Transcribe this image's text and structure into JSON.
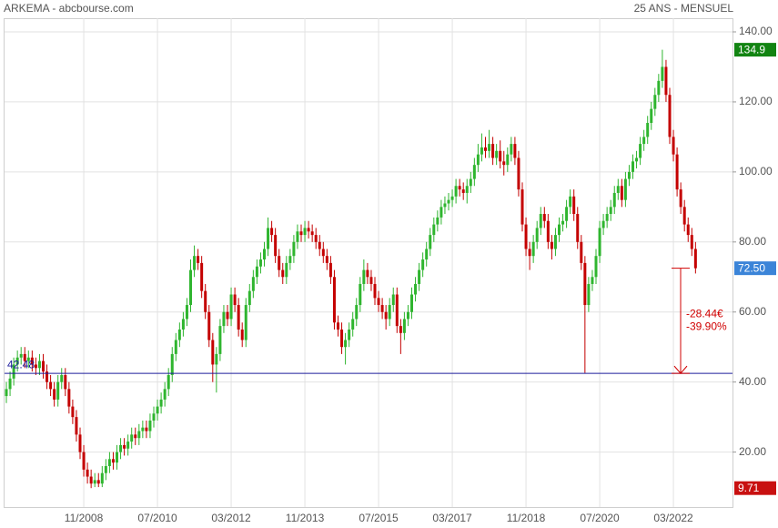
{
  "chart_data": {
    "type": "candlestick",
    "title": "ARKEMA - abcbourse.com",
    "subtitle": "25 ANS - MENSUEL",
    "categories": [
      null,
      null,
      null,
      null,
      null,
      null,
      null,
      null,
      null,
      null,
      null,
      null,
      null,
      null,
      null,
      null,
      null,
      null,
      null,
      null,
      null,
      "11/2008",
      null,
      null,
      null,
      null,
      null,
      null,
      null,
      null,
      null,
      null,
      null,
      null,
      null,
      null,
      null,
      null,
      null,
      null,
      null,
      "07/2010",
      null,
      null,
      null,
      null,
      null,
      null,
      null,
      null,
      null,
      null,
      null,
      null,
      null,
      null,
      null,
      null,
      null,
      null,
      null,
      "03/2012",
      null,
      null,
      null,
      null,
      null,
      null,
      null,
      null,
      null,
      null,
      null,
      null,
      null,
      null,
      null,
      null,
      null,
      null,
      null,
      "11/2013",
      null,
      null,
      null,
      null,
      null,
      null,
      null,
      null,
      null,
      null,
      null,
      null,
      null,
      null,
      null,
      null,
      null,
      null,
      null,
      "07/2015",
      null,
      null,
      null,
      null,
      null,
      null,
      null,
      null,
      null,
      null,
      null,
      null,
      null,
      null,
      null,
      null,
      null,
      null,
      null,
      "03/2017",
      null,
      null,
      null,
      null,
      null,
      null,
      null,
      null,
      null,
      null,
      null,
      null,
      null,
      null,
      null,
      null,
      null,
      null,
      null,
      "11/2018",
      null,
      null,
      null,
      null,
      null,
      null,
      null,
      null,
      null,
      null,
      null,
      null,
      null,
      null,
      null,
      null,
      null,
      null,
      null,
      "07/2020",
      null,
      null,
      null,
      null,
      null,
      null,
      null,
      null,
      null,
      null,
      null,
      null,
      null,
      null,
      null,
      null,
      null,
      null,
      null,
      "03/2022",
      null,
      null,
      null,
      null,
      null,
      null
    ],
    "open": [
      36,
      38,
      41,
      45,
      47,
      48,
      46,
      47,
      45,
      44,
      46,
      43,
      40,
      38,
      35,
      40,
      42,
      38,
      33,
      30,
      25,
      20,
      15,
      13,
      11,
      12,
      11,
      14,
      16,
      18,
      17,
      20,
      22,
      21,
      23,
      25,
      24,
      26,
      27,
      26,
      29,
      31,
      33,
      35,
      38,
      42,
      48,
      52,
      55,
      58,
      62,
      72,
      76,
      74,
      66,
      60,
      52,
      45,
      48,
      56,
      60,
      58,
      65,
      62,
      55,
      52,
      62,
      66,
      70,
      73,
      75,
      78,
      84,
      82,
      76,
      72,
      70,
      74,
      76,
      80,
      83,
      82,
      84,
      83,
      82,
      80,
      78,
      76,
      74,
      70,
      57,
      55,
      50,
      52,
      55,
      58,
      62,
      68,
      72,
      70,
      68,
      64,
      62,
      60,
      58,
      62,
      65,
      56,
      54,
      58,
      60,
      65,
      68,
      72,
      75,
      78,
      82,
      85,
      87,
      90,
      91,
      92,
      93,
      96,
      95,
      94,
      96,
      98,
      102,
      105,
      107,
      106,
      108,
      104,
      106,
      103,
      102,
      105,
      108,
      104,
      95,
      85,
      78,
      76,
      80,
      84,
      88,
      86,
      80,
      78,
      82,
      85,
      86,
      90,
      93,
      88,
      80,
      74,
      62,
      68,
      70,
      76,
      84,
      86,
      88,
      90,
      94,
      96,
      92,
      98,
      100,
      103,
      104,
      108,
      110,
      114,
      118,
      122,
      126,
      130,
      122,
      110,
      105,
      95,
      90,
      85,
      82,
      78
    ],
    "high": [
      40,
      43,
      47,
      49,
      50,
      50,
      49,
      49,
      47,
      48,
      48,
      45,
      42,
      40,
      42,
      44,
      44,
      40,
      35,
      32,
      27,
      22,
      17,
      15,
      14,
      14,
      16,
      18,
      20,
      20,
      22,
      24,
      24,
      25,
      27,
      27,
      28,
      29,
      29,
      31,
      33,
      35,
      37,
      40,
      44,
      50,
      54,
      57,
      60,
      64,
      75,
      79,
      78,
      76,
      68,
      62,
      54,
      50,
      58,
      62,
      62,
      67,
      67,
      64,
      57,
      64,
      68,
      72,
      75,
      77,
      80,
      87,
      86,
      84,
      78,
      74,
      76,
      78,
      82,
      85,
      85,
      86,
      86,
      85,
      84,
      82,
      80,
      78,
      76,
      72,
      59,
      57,
      54,
      57,
      60,
      64,
      70,
      75,
      74,
      72,
      70,
      66,
      64,
      62,
      64,
      67,
      67,
      58,
      60,
      62,
      67,
      70,
      74,
      77,
      80,
      84,
      87,
      89,
      92,
      93,
      94,
      95,
      98,
      98,
      97,
      98,
      100,
      104,
      108,
      111,
      110,
      112,
      110,
      108,
      109,
      106,
      107,
      110,
      110,
      106,
      97,
      87,
      80,
      82,
      86,
      90,
      90,
      88,
      82,
      84,
      87,
      88,
      92,
      95,
      95,
      90,
      82,
      76,
      70,
      72,
      78,
      86,
      88,
      90,
      92,
      96,
      98,
      98,
      100,
      102,
      105,
      106,
      110,
      112,
      116,
      120,
      124,
      128,
      134.9,
      132,
      124,
      112,
      107,
      97,
      92,
      87,
      84,
      80
    ],
    "low": [
      34,
      36,
      39,
      43,
      45,
      44,
      44,
      43,
      42,
      42,
      41,
      38,
      36,
      33,
      33,
      38,
      36,
      31,
      28,
      23,
      18,
      13,
      11,
      9.71,
      10,
      10,
      10,
      12,
      14,
      15,
      15,
      18,
      19,
      19,
      21,
      22,
      22,
      24,
      24,
      24,
      27,
      29,
      31,
      33,
      36,
      40,
      46,
      50,
      53,
      56,
      60,
      70,
      72,
      64,
      58,
      50,
      40,
      37,
      46,
      54,
      56,
      56,
      60,
      53,
      50,
      50,
      60,
      64,
      68,
      71,
      73,
      76,
      80,
      74,
      70,
      68,
      68,
      72,
      74,
      78,
      80,
      80,
      81,
      80,
      78,
      76,
      74,
      72,
      68,
      55,
      53,
      48,
      45,
      50,
      53,
      56,
      60,
      66,
      68,
      66,
      62,
      60,
      58,
      55,
      56,
      60,
      54,
      48,
      52,
      56,
      58,
      63,
      66,
      70,
      73,
      76,
      80,
      83,
      85,
      88,
      89,
      90,
      91,
      93,
      92,
      91,
      94,
      96,
      100,
      103,
      104,
      104,
      102,
      102,
      101,
      99,
      100,
      103,
      102,
      93,
      83,
      76,
      72,
      74,
      78,
      82,
      84,
      78,
      75,
      76,
      80,
      83,
      84,
      88,
      86,
      78,
      72,
      42.6,
      60,
      66,
      68,
      74,
      82,
      84,
      86,
      88,
      92,
      90,
      90,
      96,
      98,
      101,
      102,
      106,
      108,
      112,
      116,
      120,
      124,
      120,
      108,
      103,
      93,
      88,
      83,
      80,
      76,
      71
    ],
    "close": [
      38,
      41,
      45,
      47,
      48,
      46,
      47,
      45,
      44,
      46,
      43,
      40,
      38,
      35,
      40,
      42,
      38,
      33,
      30,
      25,
      20,
      15,
      13,
      11,
      12,
      11,
      14,
      16,
      18,
      17,
      20,
      22,
      21,
      23,
      25,
      24,
      26,
      27,
      26,
      29,
      31,
      33,
      35,
      38,
      42,
      48,
      52,
      55,
      58,
      62,
      72,
      76,
      74,
      66,
      60,
      52,
      45,
      48,
      56,
      60,
      58,
      65,
      62,
      55,
      52,
      62,
      66,
      70,
      73,
      75,
      78,
      84,
      82,
      76,
      72,
      70,
      74,
      76,
      80,
      83,
      82,
      84,
      83,
      82,
      80,
      78,
      76,
      74,
      70,
      57,
      55,
      50,
      52,
      55,
      58,
      62,
      68,
      72,
      70,
      68,
      64,
      62,
      60,
      58,
      62,
      65,
      56,
      54,
      58,
      60,
      65,
      68,
      72,
      75,
      78,
      82,
      85,
      87,
      90,
      91,
      92,
      93,
      96,
      95,
      94,
      96,
      98,
      102,
      105,
      107,
      106,
      108,
      104,
      106,
      103,
      102,
      105,
      108,
      104,
      95,
      85,
      78,
      76,
      80,
      84,
      88,
      86,
      80,
      78,
      82,
      85,
      86,
      90,
      93,
      88,
      80,
      74,
      62,
      68,
      70,
      76,
      84,
      86,
      88,
      90,
      94,
      96,
      92,
      98,
      100,
      103,
      104,
      108,
      110,
      114,
      118,
      122,
      126,
      130,
      122,
      110,
      105,
      95,
      90,
      85,
      82,
      78,
      72.5
    ],
    "up_color": "#2fb52f",
    "down_color": "#c40000",
    "ylim": [
      4.3,
      143.9
    ],
    "yticks": [
      {
        "value": 20,
        "label": "20.00"
      },
      {
        "value": 40,
        "label": "40.00"
      },
      {
        "value": 60,
        "label": "60.00"
      },
      {
        "value": 80,
        "label": "80.00"
      },
      {
        "value": 100,
        "label": "100.00"
      },
      {
        "value": 120,
        "label": "120.00"
      },
      {
        "value": 140,
        "label": "140.00"
      }
    ],
    "grid": true,
    "reference_line": {
      "value": 42.48,
      "color": "#1c1c9c"
    },
    "markers": [
      {
        "value": 134.9,
        "color": "#128412"
      },
      {
        "value": 72.5,
        "label": "72.50",
        "color": "#3b84d8"
      },
      {
        "value": 9.71,
        "color": "#c81010"
      }
    ],
    "annotation": {
      "color": "#d00000",
      "lines": [
        "-28.44€",
        "-39.90%"
      ]
    }
  }
}
